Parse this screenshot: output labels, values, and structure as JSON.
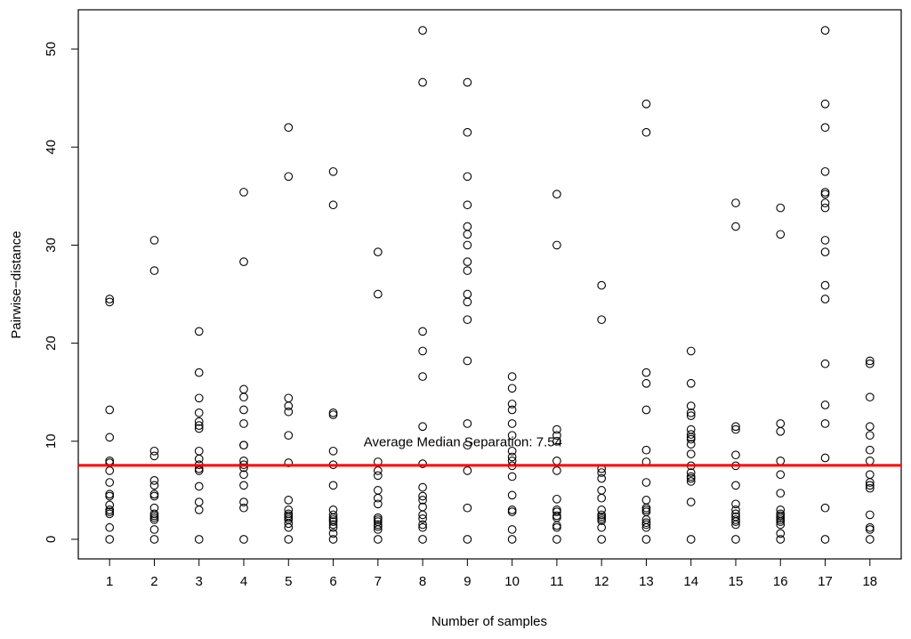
{
  "chart_data": {
    "type": "scatter",
    "xlabel": "Number of samples",
    "ylabel": "Pairwise−distance",
    "xlim": [
      0.3,
      18.7
    ],
    "ylim": [
      -2,
      54
    ],
    "x_ticks": [
      1,
      2,
      3,
      4,
      5,
      6,
      7,
      8,
      9,
      10,
      11,
      12,
      13,
      14,
      15,
      16,
      17,
      18
    ],
    "x_tick_labels": [
      "1",
      "2",
      "3",
      "4",
      "5",
      "6",
      "7",
      "8",
      "9",
      "10",
      "11",
      "12",
      "13",
      "14",
      "15",
      "16",
      "17",
      "18"
    ],
    "y_ticks": [
      0,
      10,
      20,
      30,
      40,
      50
    ],
    "y_tick_labels": [
      "0",
      "10",
      "20",
      "30",
      "40",
      "50"
    ],
    "grid": false,
    "hline": {
      "y": 7.54,
      "color": "#ff0000"
    },
    "annotation": {
      "text": "Average Median Separation:  7.54",
      "x": 8.9,
      "y": 9.5
    },
    "point_style": {
      "marker": "open-circle",
      "color": "#000000"
    },
    "points": [
      {
        "x": 1,
        "values": [
          24.5,
          24.2,
          13.2,
          10.4,
          8.0,
          7.8,
          7.0,
          5.8,
          4.6,
          4.4,
          3.5,
          3.0,
          2.8,
          2.6,
          1.2,
          0.0
        ]
      },
      {
        "x": 2,
        "values": [
          30.5,
          27.4,
          9.0,
          8.5,
          6.0,
          5.5,
          4.6,
          4.4,
          3.2,
          2.6,
          2.4,
          2.2,
          2.0,
          1.0,
          0.0
        ]
      },
      {
        "x": 3,
        "values": [
          21.2,
          17.0,
          14.4,
          12.9,
          12.0,
          11.6,
          11.3,
          9.0,
          8.2,
          7.6,
          7.2,
          7.0,
          5.4,
          3.8,
          3.0,
          0.0
        ]
      },
      {
        "x": 4,
        "values": [
          35.4,
          28.3,
          15.3,
          14.5,
          13.2,
          11.8,
          9.6,
          9.6,
          8.0,
          7.6,
          7.3,
          6.6,
          5.5,
          3.8,
          3.2,
          0.0
        ]
      },
      {
        "x": 5,
        "values": [
          42.0,
          37.0,
          14.4,
          13.6,
          13.0,
          10.6,
          7.8,
          4.0,
          3.0,
          2.6,
          2.4,
          2.2,
          2.0,
          1.6,
          1.2,
          0.0
        ]
      },
      {
        "x": 6,
        "values": [
          37.5,
          34.1,
          12.9,
          12.7,
          9.0,
          7.6,
          5.5,
          3.0,
          2.5,
          2.2,
          2.0,
          1.8,
          1.5,
          1.2,
          0.6,
          0.0
        ]
      },
      {
        "x": 7,
        "values": [
          29.3,
          25.0,
          7.9,
          7.0,
          6.5,
          5.0,
          4.2,
          3.6,
          2.2,
          2.0,
          1.8,
          1.5,
          1.3,
          1.0,
          0.0
        ]
      },
      {
        "x": 8,
        "values": [
          51.9,
          46.6,
          21.2,
          19.2,
          16.6,
          11.5,
          7.7,
          5.3,
          4.4,
          4.0,
          3.3,
          2.5,
          2.1,
          1.5,
          1.2,
          0.0
        ]
      },
      {
        "x": 9,
        "values": [
          46.6,
          41.5,
          37.0,
          34.1,
          31.9,
          31.1,
          30.0,
          28.3,
          27.4,
          25.0,
          24.2,
          22.4,
          18.2,
          11.8,
          9.6,
          7.0,
          3.2,
          0.0
        ]
      },
      {
        "x": 10,
        "values": [
          16.6,
          15.4,
          13.8,
          13.2,
          11.8,
          10.6,
          9.0,
          8.4,
          8.0,
          7.5,
          6.4,
          4.5,
          3.0,
          2.8,
          1.0,
          0.0
        ]
      },
      {
        "x": 11,
        "values": [
          35.2,
          30.0,
          11.2,
          10.6,
          10.0,
          8.0,
          7.0,
          4.1,
          3.0,
          2.8,
          2.4,
          2.2,
          1.4,
          1.2,
          0.0
        ]
      },
      {
        "x": 12,
        "values": [
          25.9,
          22.4,
          7.2,
          6.8,
          6.2,
          5.0,
          4.2,
          3.0,
          2.5,
          2.3,
          2.1,
          1.9,
          1.2,
          0.0
        ]
      },
      {
        "x": 13,
        "values": [
          44.4,
          41.5,
          17.0,
          15.9,
          13.2,
          9.1,
          7.9,
          5.8,
          4.0,
          3.2,
          3.0,
          2.8,
          2.0,
          1.7,
          1.5,
          1.2,
          0.0
        ]
      },
      {
        "x": 14,
        "values": [
          19.2,
          15.9,
          13.6,
          12.9,
          12.6,
          11.2,
          10.7,
          10.4,
          10.2,
          9.7,
          8.7,
          7.5,
          6.8,
          6.4,
          6.2,
          5.9,
          3.8,
          0.0
        ]
      },
      {
        "x": 15,
        "values": [
          34.3,
          31.9,
          11.5,
          11.2,
          8.6,
          7.5,
          5.5,
          3.6,
          3.0,
          2.6,
          2.3,
          2.0,
          1.8,
          1.5,
          0.0
        ]
      },
      {
        "x": 16,
        "values": [
          33.8,
          31.1,
          11.8,
          11.0,
          8.0,
          6.6,
          4.7,
          3.0,
          2.6,
          2.4,
          2.2,
          2.0,
          1.8,
          1.5,
          0.6,
          0.0
        ]
      },
      {
        "x": 17,
        "values": [
          51.9,
          44.4,
          42.0,
          37.5,
          35.4,
          35.2,
          34.3,
          33.8,
          30.5,
          29.3,
          25.9,
          24.5,
          17.9,
          13.7,
          11.8,
          8.3,
          3.2,
          0.0
        ]
      },
      {
        "x": 18,
        "values": [
          18.2,
          17.9,
          14.5,
          11.5,
          10.6,
          9.1,
          8.0,
          6.6,
          5.8,
          5.5,
          5.2,
          2.5,
          1.2,
          1.0,
          0.0
        ]
      }
    ]
  }
}
